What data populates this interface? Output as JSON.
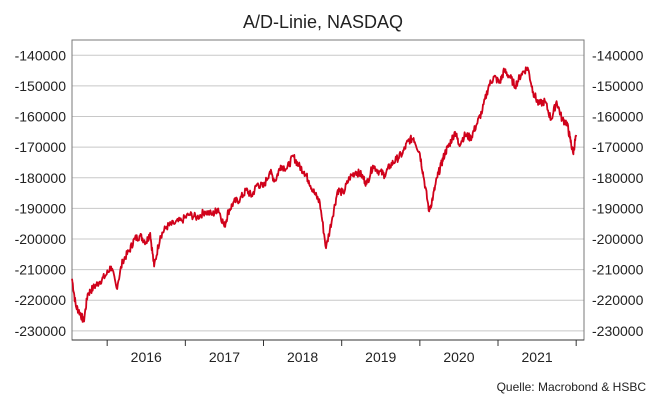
{
  "chart_data": {
    "type": "line",
    "title": "A/D-Linie, NASDAQ",
    "source": "Quelle: Macrobond & HSBC",
    "x_range": [
      2015.55,
      2022.1
    ],
    "ylim": [
      -233000,
      -135000
    ],
    "y_ticks": [
      -140000,
      -150000,
      -160000,
      -170000,
      -180000,
      -190000,
      -200000,
      -210000,
      -220000,
      -230000
    ],
    "y_tick_labels": [
      "-140000",
      "-150000",
      "-160000",
      "-170000",
      "-180000",
      "-190000",
      "-200000",
      "-210000",
      "-220000",
      "-230000"
    ],
    "x_tick_years": [
      "2016",
      "2017",
      "2018",
      "2019",
      "2020",
      "2021"
    ],
    "grid": true,
    "series": [
      {
        "color": "#d0021b",
        "x": [
          2015.55,
          2015.6,
          2015.65,
          2015.7,
          2015.75,
          2015.82,
          2015.9,
          2015.98,
          2016.05,
          2016.12,
          2016.2,
          2016.28,
          2016.35,
          2016.42,
          2016.5,
          2016.55,
          2016.6,
          2016.68,
          2016.76,
          2016.85,
          2016.95,
          2017.05,
          2017.15,
          2017.25,
          2017.35,
          2017.42,
          2017.5,
          2017.55,
          2017.62,
          2017.7,
          2017.78,
          2017.85,
          2017.92,
          2018.0,
          2018.08,
          2018.15,
          2018.22,
          2018.3,
          2018.38,
          2018.45,
          2018.52,
          2018.58,
          2018.65,
          2018.72,
          2018.8,
          2018.88,
          2018.95,
          2019.02,
          2019.1,
          2019.18,
          2019.25,
          2019.32,
          2019.4,
          2019.48,
          2019.55,
          2019.62,
          2019.7,
          2019.78,
          2019.85,
          2019.92,
          2020.0,
          2020.05,
          2020.12,
          2020.17,
          2020.22,
          2020.27,
          2020.32,
          2020.38,
          2020.45,
          2020.5,
          2020.58,
          2020.65,
          2020.72,
          2020.8,
          2020.88,
          2020.95,
          2021.02,
          2021.08,
          2021.15,
          2021.22,
          2021.3,
          2021.38,
          2021.45,
          2021.52,
          2021.6,
          2021.68,
          2021.75,
          2021.82,
          2021.88,
          2021.92,
          2021.96,
          2022.0
        ],
        "y": [
          -213000,
          -222000,
          -224000,
          -227000,
          -218000,
          -216000,
          -214000,
          -212000,
          -209000,
          -216000,
          -207000,
          -204000,
          -200000,
          -199000,
          -201000,
          -198000,
          -209000,
          -199000,
          -196000,
          -195000,
          -194000,
          -192000,
          -193000,
          -191000,
          -192000,
          -190000,
          -196000,
          -191000,
          -188000,
          -187000,
          -184000,
          -186000,
          -182000,
          -183000,
          -178000,
          -181000,
          -176000,
          -177000,
          -173000,
          -176000,
          -178000,
          -181000,
          -185000,
          -188000,
          -203000,
          -193000,
          -184000,
          -185000,
          -180000,
          -178000,
          -179000,
          -182000,
          -176000,
          -178000,
          -179000,
          -176000,
          -174000,
          -172000,
          -168000,
          -167000,
          -172000,
          -180000,
          -191000,
          -186000,
          -180000,
          -176000,
          -172000,
          -169000,
          -165000,
          -169000,
          -166000,
          -167000,
          -163000,
          -158000,
          -150000,
          -147000,
          -149000,
          -145000,
          -147000,
          -150000,
          -146000,
          -144000,
          -152000,
          -156000,
          -155000,
          -161000,
          -155000,
          -161000,
          -162000,
          -167000,
          -172000,
          -166000
        ]
      }
    ]
  }
}
